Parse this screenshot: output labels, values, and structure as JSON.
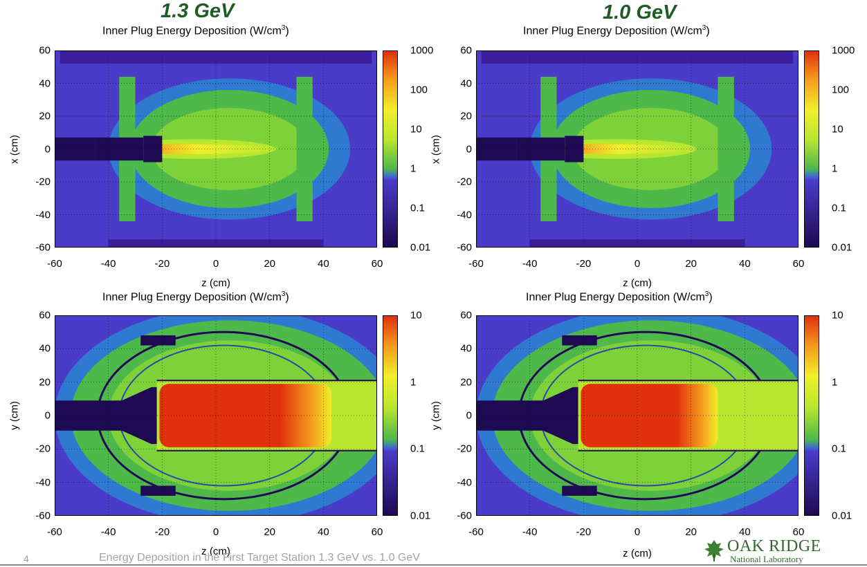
{
  "energy_labels": {
    "left": "1.3 GeV",
    "right": "1.0 GeV"
  },
  "common": {
    "title": "Inner Plug Energy Deposition (W/cm",
    "title_sup": "3",
    "title_close": ")",
    "xlabel": "z (cm)"
  },
  "footer": {
    "slide_number": "4",
    "caption": "Energy Deposition in the First Target Station 1.3 GeV vs. 1.0 GeV",
    "logo_name": "OAK RIDGE",
    "logo_sub": "National Laboratory"
  },
  "chart_data": [
    {
      "id": "top-left",
      "type": "heatmap",
      "energy": "1.3 GeV",
      "view": "x-z",
      "title": "Inner Plug Energy Deposition (W/cm3)",
      "xlabel": "z (cm)",
      "ylabel": "x (cm)",
      "xlim": [
        -60,
        60
      ],
      "ylim": [
        -60,
        60
      ],
      "xticks": [
        -60,
        -40,
        -20,
        0,
        20,
        40,
        60
      ],
      "yticks": [
        60,
        40,
        20,
        0,
        -20,
        -40,
        -60
      ],
      "colorbar": {
        "scale": "log",
        "range": [
          0.01,
          1000
        ],
        "ticks": [
          "1000",
          "100",
          "10",
          "1",
          "0.1",
          "0.01"
        ]
      },
      "grid": true,
      "peak_location_z": -18,
      "hot_core_extent_z": [
        -20,
        5
      ]
    },
    {
      "id": "top-right",
      "type": "heatmap",
      "energy": "1.0 GeV",
      "view": "x-z",
      "title": "Inner Plug Energy Deposition (W/cm3)",
      "xlabel": "z (cm)",
      "ylabel": "x (cm)",
      "xlim": [
        -60,
        60
      ],
      "ylim": [
        -60,
        60
      ],
      "xticks": [
        -60,
        -40,
        -20,
        0,
        20,
        40,
        60
      ],
      "yticks": [
        60,
        40,
        20,
        0,
        -20,
        -40,
        -60
      ],
      "colorbar": {
        "scale": "log",
        "range": [
          0.01,
          1000
        ],
        "ticks": [
          "1000",
          "100",
          "10",
          "1",
          "0.1",
          "0.01"
        ]
      },
      "grid": true,
      "peak_location_z": -18,
      "hot_core_extent_z": [
        -20,
        2
      ]
    },
    {
      "id": "bottom-left",
      "type": "heatmap",
      "energy": "1.3 GeV",
      "view": "y-z",
      "title": "Inner Plug Energy Deposition (W/cm3)",
      "xlabel": "z (cm)",
      "ylabel": "y (cm)",
      "xlim": [
        -60,
        60
      ],
      "ylim": [
        -60,
        60
      ],
      "xticks": [
        -60,
        -40,
        -20,
        0,
        20,
        40,
        60
      ],
      "yticks": [
        60,
        40,
        20,
        0,
        -20,
        -40,
        -60
      ],
      "colorbar": {
        "scale": "log",
        "range": [
          0.01,
          10
        ],
        "ticks": [
          "10",
          "1",
          "0.1",
          "0.01"
        ]
      },
      "grid": true,
      "hot_region_extent_z": [
        -22,
        43
      ]
    },
    {
      "id": "bottom-right",
      "type": "heatmap",
      "energy": "1.0 GeV",
      "view": "y-z",
      "title": "Inner Plug Energy Deposition (W/cm3)",
      "xlabel": "z (cm)",
      "ylabel": "y (cm)",
      "xlim": [
        -60,
        60
      ],
      "ylim": [
        -60,
        60
      ],
      "xticks": [
        -60,
        -40,
        -20,
        0,
        20,
        40,
        60
      ],
      "yticks": [
        60,
        40,
        20,
        0,
        -20,
        -40,
        -60
      ],
      "colorbar": {
        "scale": "log",
        "range": [
          0.01,
          10
        ],
        "ticks": [
          "10",
          "1",
          "0.1",
          "0.01"
        ]
      },
      "grid": true,
      "hot_region_extent_z": [
        -22,
        30
      ]
    }
  ]
}
